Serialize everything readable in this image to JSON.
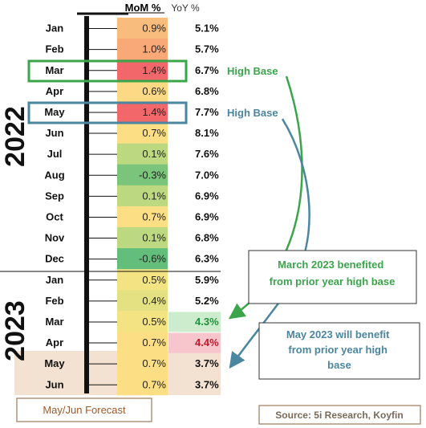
{
  "chart_data": {
    "type": "table",
    "columns": [
      "MoM %",
      "YoY %"
    ],
    "groups": [
      {
        "label": "2022",
        "months": [
          "Jan",
          "Feb",
          "Mar",
          "Apr",
          "May",
          "Jun",
          "Jul",
          "Aug",
          "Sep",
          "Oct",
          "Nov",
          "Dec"
        ]
      },
      {
        "label": "2023",
        "months": [
          "Jan",
          "Feb",
          "Mar",
          "Apr",
          "May",
          "Jun"
        ]
      }
    ],
    "rows": [
      {
        "year": "2022",
        "month": "Jan",
        "mom": 0.9,
        "mom_label": "0.9%",
        "yoy": 5.1,
        "yoy_label": "5.1%",
        "mom_color": "#f8bd7c"
      },
      {
        "year": "2022",
        "month": "Feb",
        "mom": 1.0,
        "mom_label": "1.0%",
        "yoy": 5.7,
        "yoy_label": "5.7%",
        "mom_color": "#f8a977"
      },
      {
        "year": "2022",
        "month": "Mar",
        "mom": 1.4,
        "mom_label": "1.4%",
        "yoy": 6.7,
        "yoy_label": "6.7%",
        "mom_color": "#f2676a"
      },
      {
        "year": "2022",
        "month": "Apr",
        "mom": 0.6,
        "mom_label": "0.6%",
        "yoy": 6.8,
        "yoy_label": "6.8%",
        "mom_color": "#fbd985"
      },
      {
        "year": "2022",
        "month": "May",
        "mom": 1.4,
        "mom_label": "1.4%",
        "yoy": 7.7,
        "yoy_label": "7.7%",
        "mom_color": "#f2676a"
      },
      {
        "year": "2022",
        "month": "Jun",
        "mom": 0.7,
        "mom_label": "0.7%",
        "yoy": 8.1,
        "yoy_label": "8.1%",
        "mom_color": "#fcde84"
      },
      {
        "year": "2022",
        "month": "Jul",
        "mom": 0.1,
        "mom_label": "0.1%",
        "yoy": 7.6,
        "yoy_label": "7.6%",
        "mom_color": "#bcd881"
      },
      {
        "year": "2022",
        "month": "Aug",
        "mom": -0.3,
        "mom_label": "-0.3%",
        "yoy": 7.0,
        "yoy_label": "7.0%",
        "mom_color": "#7ac47c"
      },
      {
        "year": "2022",
        "month": "Sep",
        "mom": 0.1,
        "mom_label": "0.1%",
        "yoy": 6.9,
        "yoy_label": "6.9%",
        "mom_color": "#bcd881"
      },
      {
        "year": "2022",
        "month": "Oct",
        "mom": 0.7,
        "mom_label": "0.7%",
        "yoy": 6.9,
        "yoy_label": "6.9%",
        "mom_color": "#fcde84"
      },
      {
        "year": "2022",
        "month": "Nov",
        "mom": 0.1,
        "mom_label": "0.1%",
        "yoy": 6.8,
        "yoy_label": "6.8%",
        "mom_color": "#bcd881"
      },
      {
        "year": "2022",
        "month": "Dec",
        "mom": -0.6,
        "mom_label": "-0.6%",
        "yoy": 6.3,
        "yoy_label": "6.3%",
        "mom_color": "#63be7b"
      },
      {
        "year": "2023",
        "month": "Jan",
        "mom": 0.5,
        "mom_label": "0.5%",
        "yoy": 5.9,
        "yoy_label": "5.9%",
        "mom_color": "#f3e383"
      },
      {
        "year": "2023",
        "month": "Feb",
        "mom": 0.4,
        "mom_label": "0.4%",
        "yoy": 5.2,
        "yoy_label": "5.2%",
        "mom_color": "#e4e183"
      },
      {
        "year": "2023",
        "month": "Mar",
        "mom": 0.5,
        "mom_label": "0.5%",
        "yoy": 4.3,
        "yoy_label": "4.3%",
        "mom_color": "#f3e383",
        "yoy_highlight": "#cdeccd",
        "yoy_text": "#1f8f3a"
      },
      {
        "year": "2023",
        "month": "Apr",
        "mom": 0.7,
        "mom_label": "0.7%",
        "yoy": 4.4,
        "yoy_label": "4.4%",
        "mom_color": "#fcde84",
        "yoy_highlight": "#f6c6cc",
        "yoy_text": "#c0182a"
      },
      {
        "year": "2023",
        "month": "May",
        "mom": 0.7,
        "mom_label": "0.7%",
        "yoy": 3.7,
        "yoy_label": "3.7%",
        "mom_color": "#fcde84",
        "forecast": true
      },
      {
        "year": "2023",
        "month": "Jun",
        "mom": 0.7,
        "mom_label": "0.7%",
        "yoy": 3.7,
        "yoy_label": "3.7%",
        "mom_color": "#fcde84",
        "forecast": true
      }
    ],
    "annotations": [
      {
        "target": "2022-Mar",
        "label": "High Base",
        "color": "#3aa54a"
      },
      {
        "target": "2022-May",
        "label": "High Base",
        "color": "#4a86a0"
      },
      {
        "text": "March 2023 benefited from prior year high base",
        "points_to": "2023-Mar",
        "color": "#3aa54a"
      },
      {
        "text": "May 2023 will benefit from prior year high base",
        "points_to": "2023-May",
        "color": "#4a86a0"
      }
    ],
    "forecast_label": "May/Jun Forecast",
    "source": "Source: 5i Research, Koyfin",
    "forecast_shade_color": "#f3e2d2",
    "outline_color": "#9c7a5a"
  }
}
